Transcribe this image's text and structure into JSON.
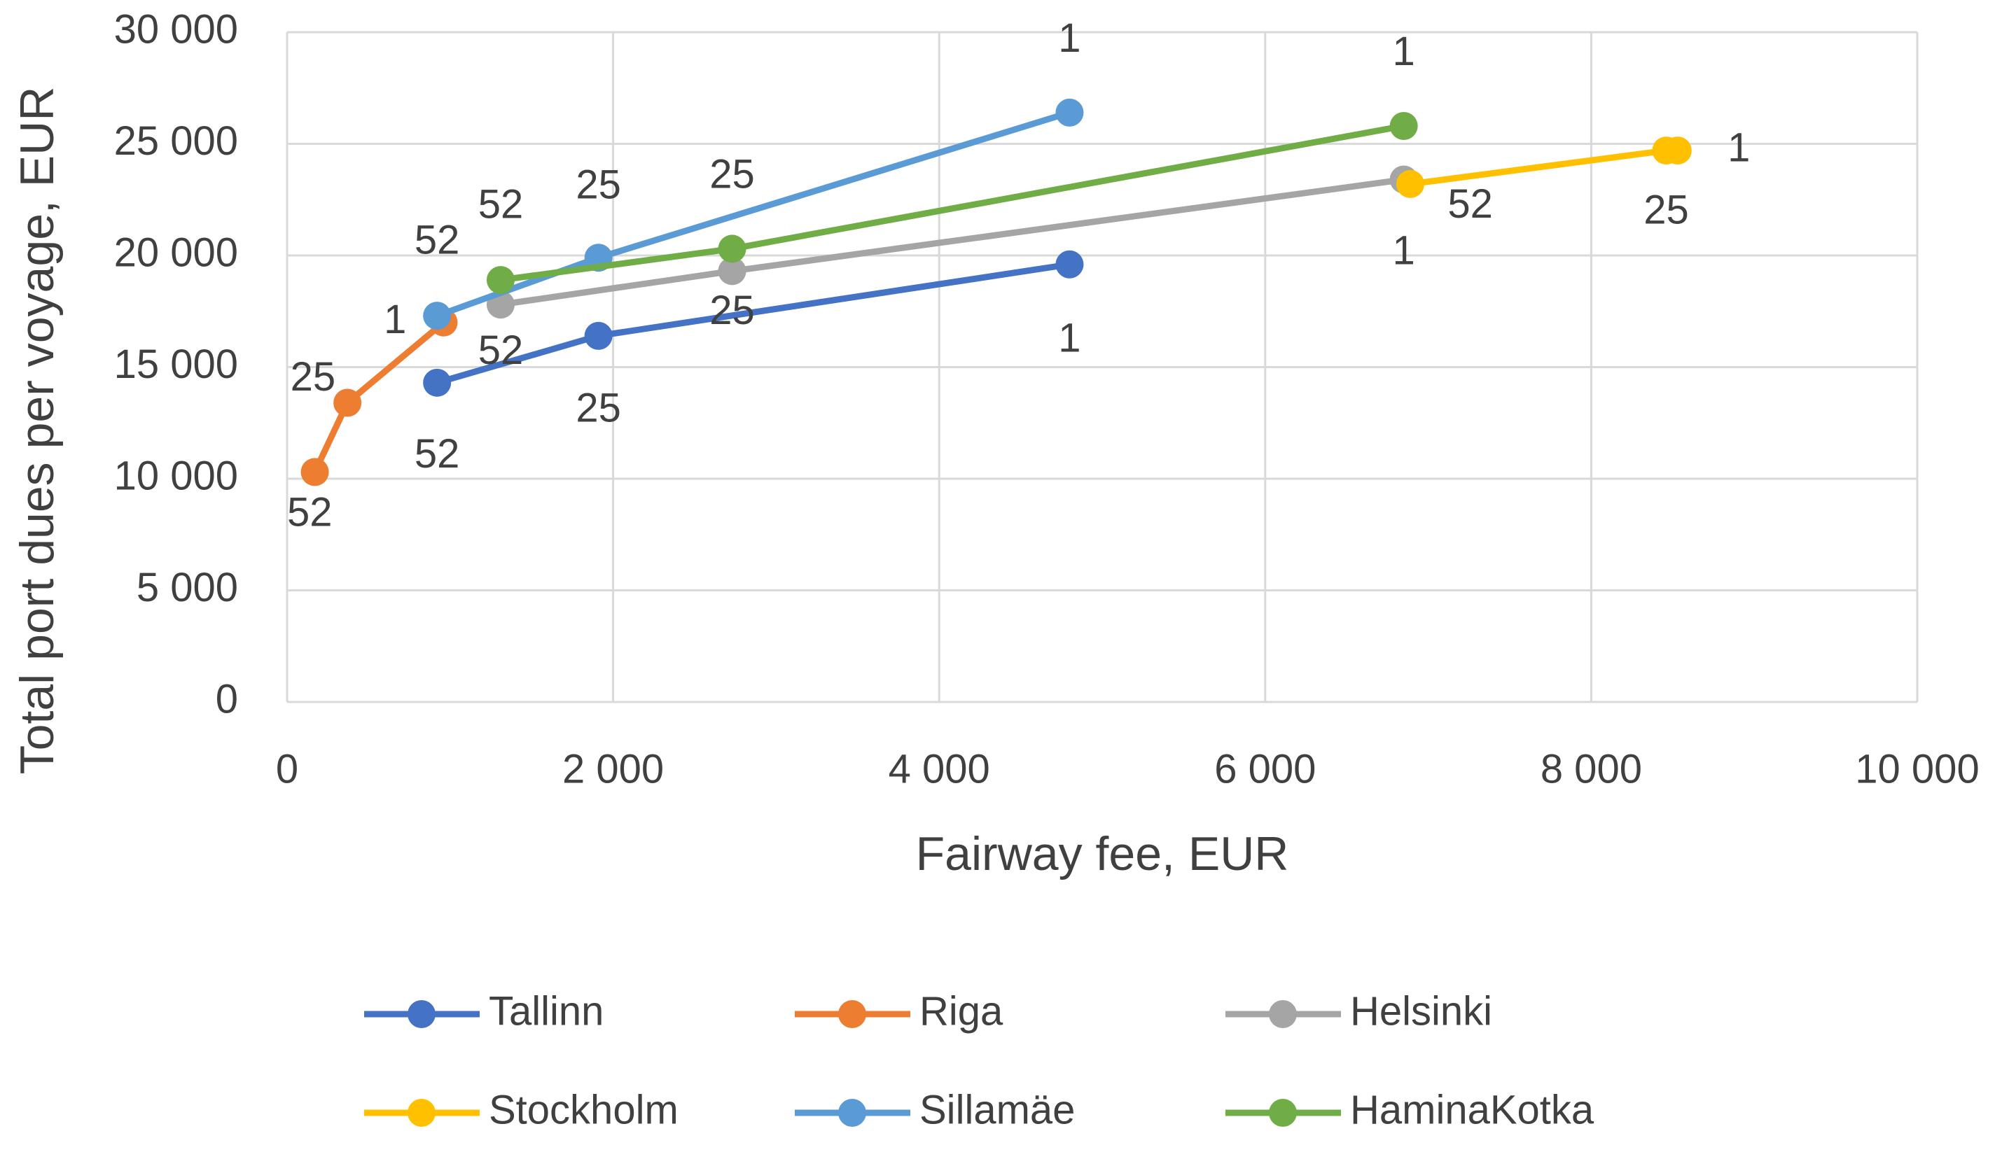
{
  "chart_data": {
    "type": "scatter",
    "x_label": "Fairway fee, EUR",
    "y_label": "Total port dues per voyage, EUR",
    "xlim": [
      0,
      10000
    ],
    "ylim": [
      0,
      30000
    ],
    "xticks": [
      0,
      {
        "value": 2000,
        "label": "2 000"
      },
      {
        "value": 4000,
        "label": "4 000"
      },
      {
        "value": 6000,
        "label": "6 000"
      },
      {
        "value": 8000,
        "label": "8 000"
      },
      {
        "value": 10000,
        "label": "10 000"
      }
    ],
    "yticks": [
      0,
      {
        "value": 5000,
        "label": "5 000"
      },
      {
        "value": 10000,
        "label": "10 000"
      },
      {
        "value": 15000,
        "label": "15 000"
      },
      {
        "value": 20000,
        "label": "20 000"
      },
      {
        "value": 25000,
        "label": "25 000"
      },
      {
        "value": 30000,
        "label": "30 000"
      }
    ],
    "grid": true,
    "legend": "bottom",
    "series": [
      {
        "name": "Tallinn",
        "color": "#4472c4",
        "x": [
          920,
          1910,
          4800
        ],
        "values": [
          14300,
          16400,
          19600
        ],
        "labels": [
          "52",
          "25",
          "1"
        ]
      },
      {
        "name": "Riga",
        "color": "#ed7d31",
        "x": [
          170,
          370,
          960
        ],
        "values": [
          10300,
          13400,
          17000
        ],
        "labels": [
          "52",
          "25",
          "1"
        ]
      },
      {
        "name": "Helsinki",
        "color": "#a5a5a5",
        "x": [
          1310,
          2730,
          6850
        ],
        "values": [
          17800,
          19300,
          23400
        ],
        "labels": [
          "52",
          "25",
          "1"
        ]
      },
      {
        "name": "Stockholm",
        "color": "#ffc000",
        "x": [
          6890,
          8460,
          8530
        ],
        "values": [
          23200,
          24700,
          24700
        ],
        "labels": [
          "52",
          "25",
          "1"
        ]
      },
      {
        "name": "Sillamäe",
        "color": "#5b9bd5",
        "x": [
          920,
          1910,
          4800
        ],
        "values": [
          17300,
          19900,
          26400
        ],
        "labels": [
          "52",
          "25",
          "1"
        ]
      },
      {
        "name": "HaminaKotka",
        "color": "#70ad47",
        "x": [
          1310,
          2730,
          6850
        ],
        "values": [
          18900,
          20300,
          25800
        ],
        "labels": [
          "52",
          "25",
          "1"
        ]
      }
    ]
  }
}
